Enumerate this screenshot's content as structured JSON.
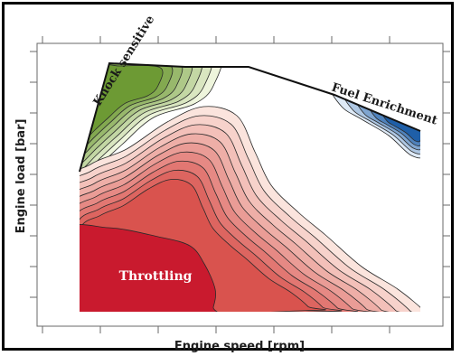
{
  "chart_data": {
    "type": "contour",
    "xlabel": "Engine speed [rpm]",
    "ylabel": "Engine load [bar]",
    "x_tick_labels": [],
    "y_tick_labels": [],
    "grid": false,
    "regions": [
      {
        "name": "Knock sensitive",
        "color_family": "green",
        "location": "upper-left, along full-load line",
        "contour_levels": 7
      },
      {
        "name": "Fuel Enrichment",
        "color_family": "blue",
        "location": "upper-right, along full-load line",
        "contour_levels": 5
      },
      {
        "name": "Throttling",
        "color_family": "red",
        "location": "low load, low-to-mid speed",
        "contour_levels": 9
      }
    ],
    "full_load_curve": "increasing at low speed, plateau at mid speed, decreasing at high speed"
  },
  "colors": {
    "green_light": "#eef5dc",
    "green_dark": "#6d9a34",
    "blue_light": "#deeaf7",
    "blue_dark": "#1f5fa8",
    "red_light": "#fbe4dd",
    "red_dark": "#c91a2e",
    "axis": "#555555"
  }
}
